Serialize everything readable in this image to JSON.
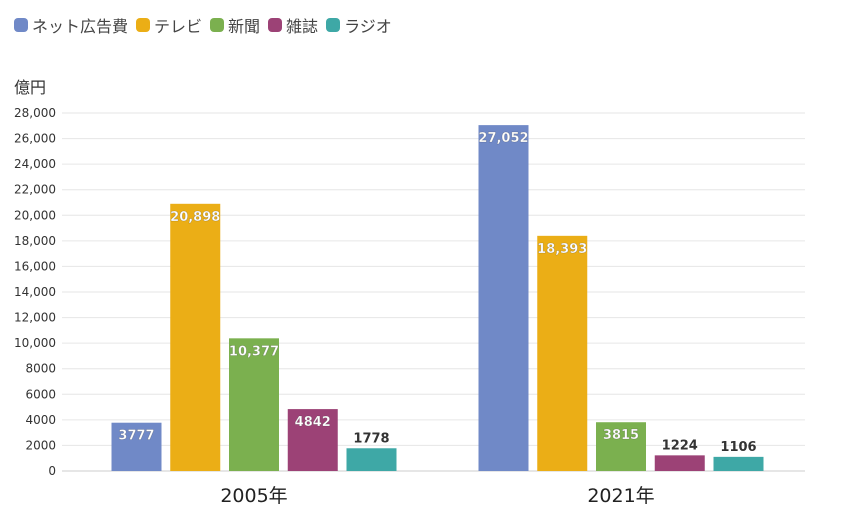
{
  "legend": {
    "items": [
      {
        "label": "ネット広告費",
        "color": "#7089c7"
      },
      {
        "label": "テレビ",
        "color": "#ebae16"
      },
      {
        "label": "新聞",
        "color": "#7bb04f"
      },
      {
        "label": "雑誌",
        "color": "#9c4276"
      },
      {
        "label": "ラジオ",
        "color": "#3ea8a6"
      }
    ]
  },
  "chart_data": {
    "type": "bar",
    "ylabel": "億円",
    "categories": [
      "2005年",
      "2021年"
    ],
    "ylim": [
      0,
      28000
    ],
    "yticks": [
      {
        "value": 0,
        "label": "0"
      },
      {
        "value": 2000,
        "label": "2000"
      },
      {
        "value": 4000,
        "label": "4000"
      },
      {
        "value": 6000,
        "label": "6000"
      },
      {
        "value": 8000,
        "label": "8000"
      },
      {
        "value": 10000,
        "label": "10,000"
      },
      {
        "value": 12000,
        "label": "12,000"
      },
      {
        "value": 14000,
        "label": "14,000"
      },
      {
        "value": 16000,
        "label": "16,000"
      },
      {
        "value": 18000,
        "label": "18,000"
      },
      {
        "value": 20000,
        "label": "20,000"
      },
      {
        "value": 22000,
        "label": "22,000"
      },
      {
        "value": 24000,
        "label": "24,000"
      },
      {
        "value": 26000,
        "label": "26,000"
      },
      {
        "value": 28000,
        "label": "28,000"
      }
    ],
    "grid": true,
    "legend_position": "top-left",
    "series": [
      {
        "name": "ネット広告費",
        "color": "#7089c7",
        "values": [
          3777,
          27052
        ],
        "value_labels": [
          "3777",
          "27,052"
        ]
      },
      {
        "name": "テレビ",
        "color": "#ebae16",
        "values": [
          20898,
          18393
        ],
        "value_labels": [
          "20,898",
          "18,393"
        ]
      },
      {
        "name": "新聞",
        "color": "#7bb04f",
        "values": [
          10377,
          3815
        ],
        "value_labels": [
          "10,377",
          "3815"
        ]
      },
      {
        "name": "雑誌",
        "color": "#9c4276",
        "values": [
          4842,
          1224
        ],
        "value_labels": [
          "4842",
          "1224"
        ]
      },
      {
        "name": "ラジオ",
        "color": "#3ea8a6",
        "values": [
          1778,
          1106
        ],
        "value_labels": [
          "1778",
          "1106"
        ]
      }
    ]
  }
}
